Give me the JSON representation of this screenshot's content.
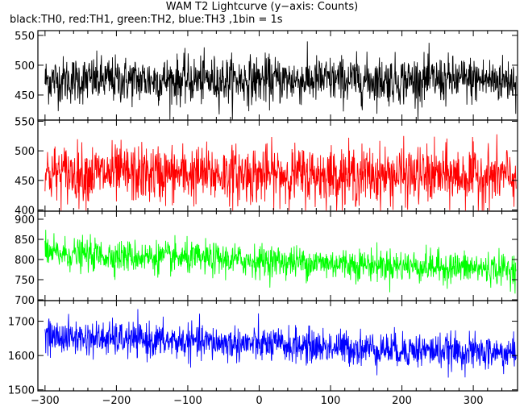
{
  "chart_data": {
    "type": "line",
    "title": "WAM T2 Lightcurve (y−axis: Counts)",
    "subtitle": "black:TH0, red:TH1, green:TH2, blue:TH3 ,1bin = 1s",
    "xlabel": "",
    "ylabel": "",
    "xlim": [
      -310,
      362
    ],
    "x_ticks": [
      -300,
      -200,
      -100,
      0,
      100,
      200,
      300
    ],
    "bin_seconds": 1,
    "panels": [
      {
        "series": "TH0",
        "color": "#000000",
        "ylim": [
          408,
          558
        ],
        "y_ticks": [
          450,
          500,
          550
        ],
        "baseline": 475,
        "noise": 22,
        "trend": [
          0,
          0
        ]
      },
      {
        "series": "TH1",
        "color": "#ff0000",
        "ylim": [
          398,
          552
        ],
        "y_ticks": [
          400,
          450,
          500,
          550
        ],
        "baseline": 462,
        "noise": 27,
        "trend": [
          0,
          -5
        ]
      },
      {
        "series": "TH2",
        "color": "#00ff00",
        "ylim": [
          698,
          920
        ],
        "y_ticks": [
          700,
          750,
          800,
          850,
          900
        ],
        "baseline": 800,
        "noise": 22,
        "trend": [
          15,
          -25
        ]
      },
      {
        "series": "TH3",
        "color": "#0000ff",
        "ylim": [
          1497,
          1760
        ],
        "y_ticks": [
          1500,
          1600,
          1700
        ],
        "baseline": 1630,
        "noise": 28,
        "trend": [
          25,
          -25
        ]
      }
    ]
  }
}
